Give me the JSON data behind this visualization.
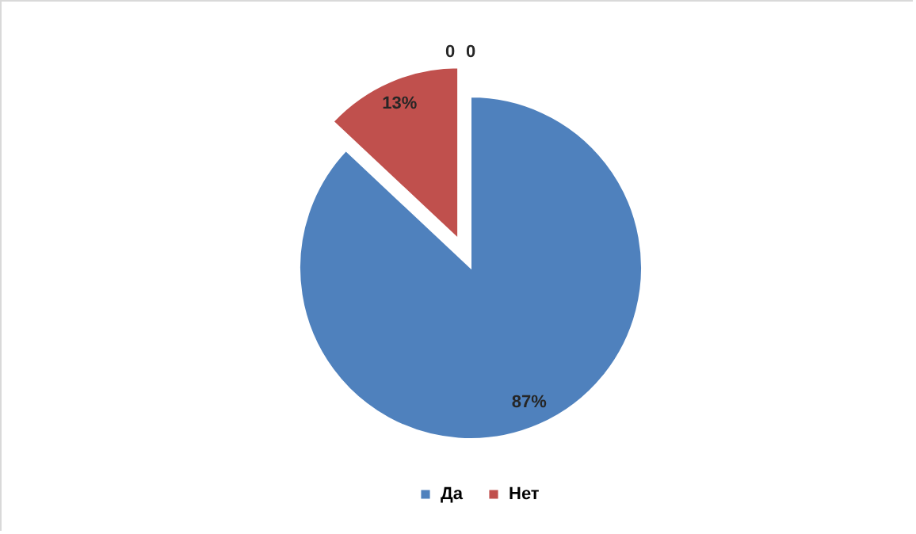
{
  "chart_data": {
    "type": "pie",
    "categories": [
      "Да",
      "Нет"
    ],
    "values": [
      87,
      13
    ],
    "colors": [
      "#4f81bd",
      "#c0504d"
    ],
    "value_labels": [
      "87%",
      "13%"
    ],
    "annotations": [
      "0",
      "0"
    ],
    "legend": "bottom"
  }
}
